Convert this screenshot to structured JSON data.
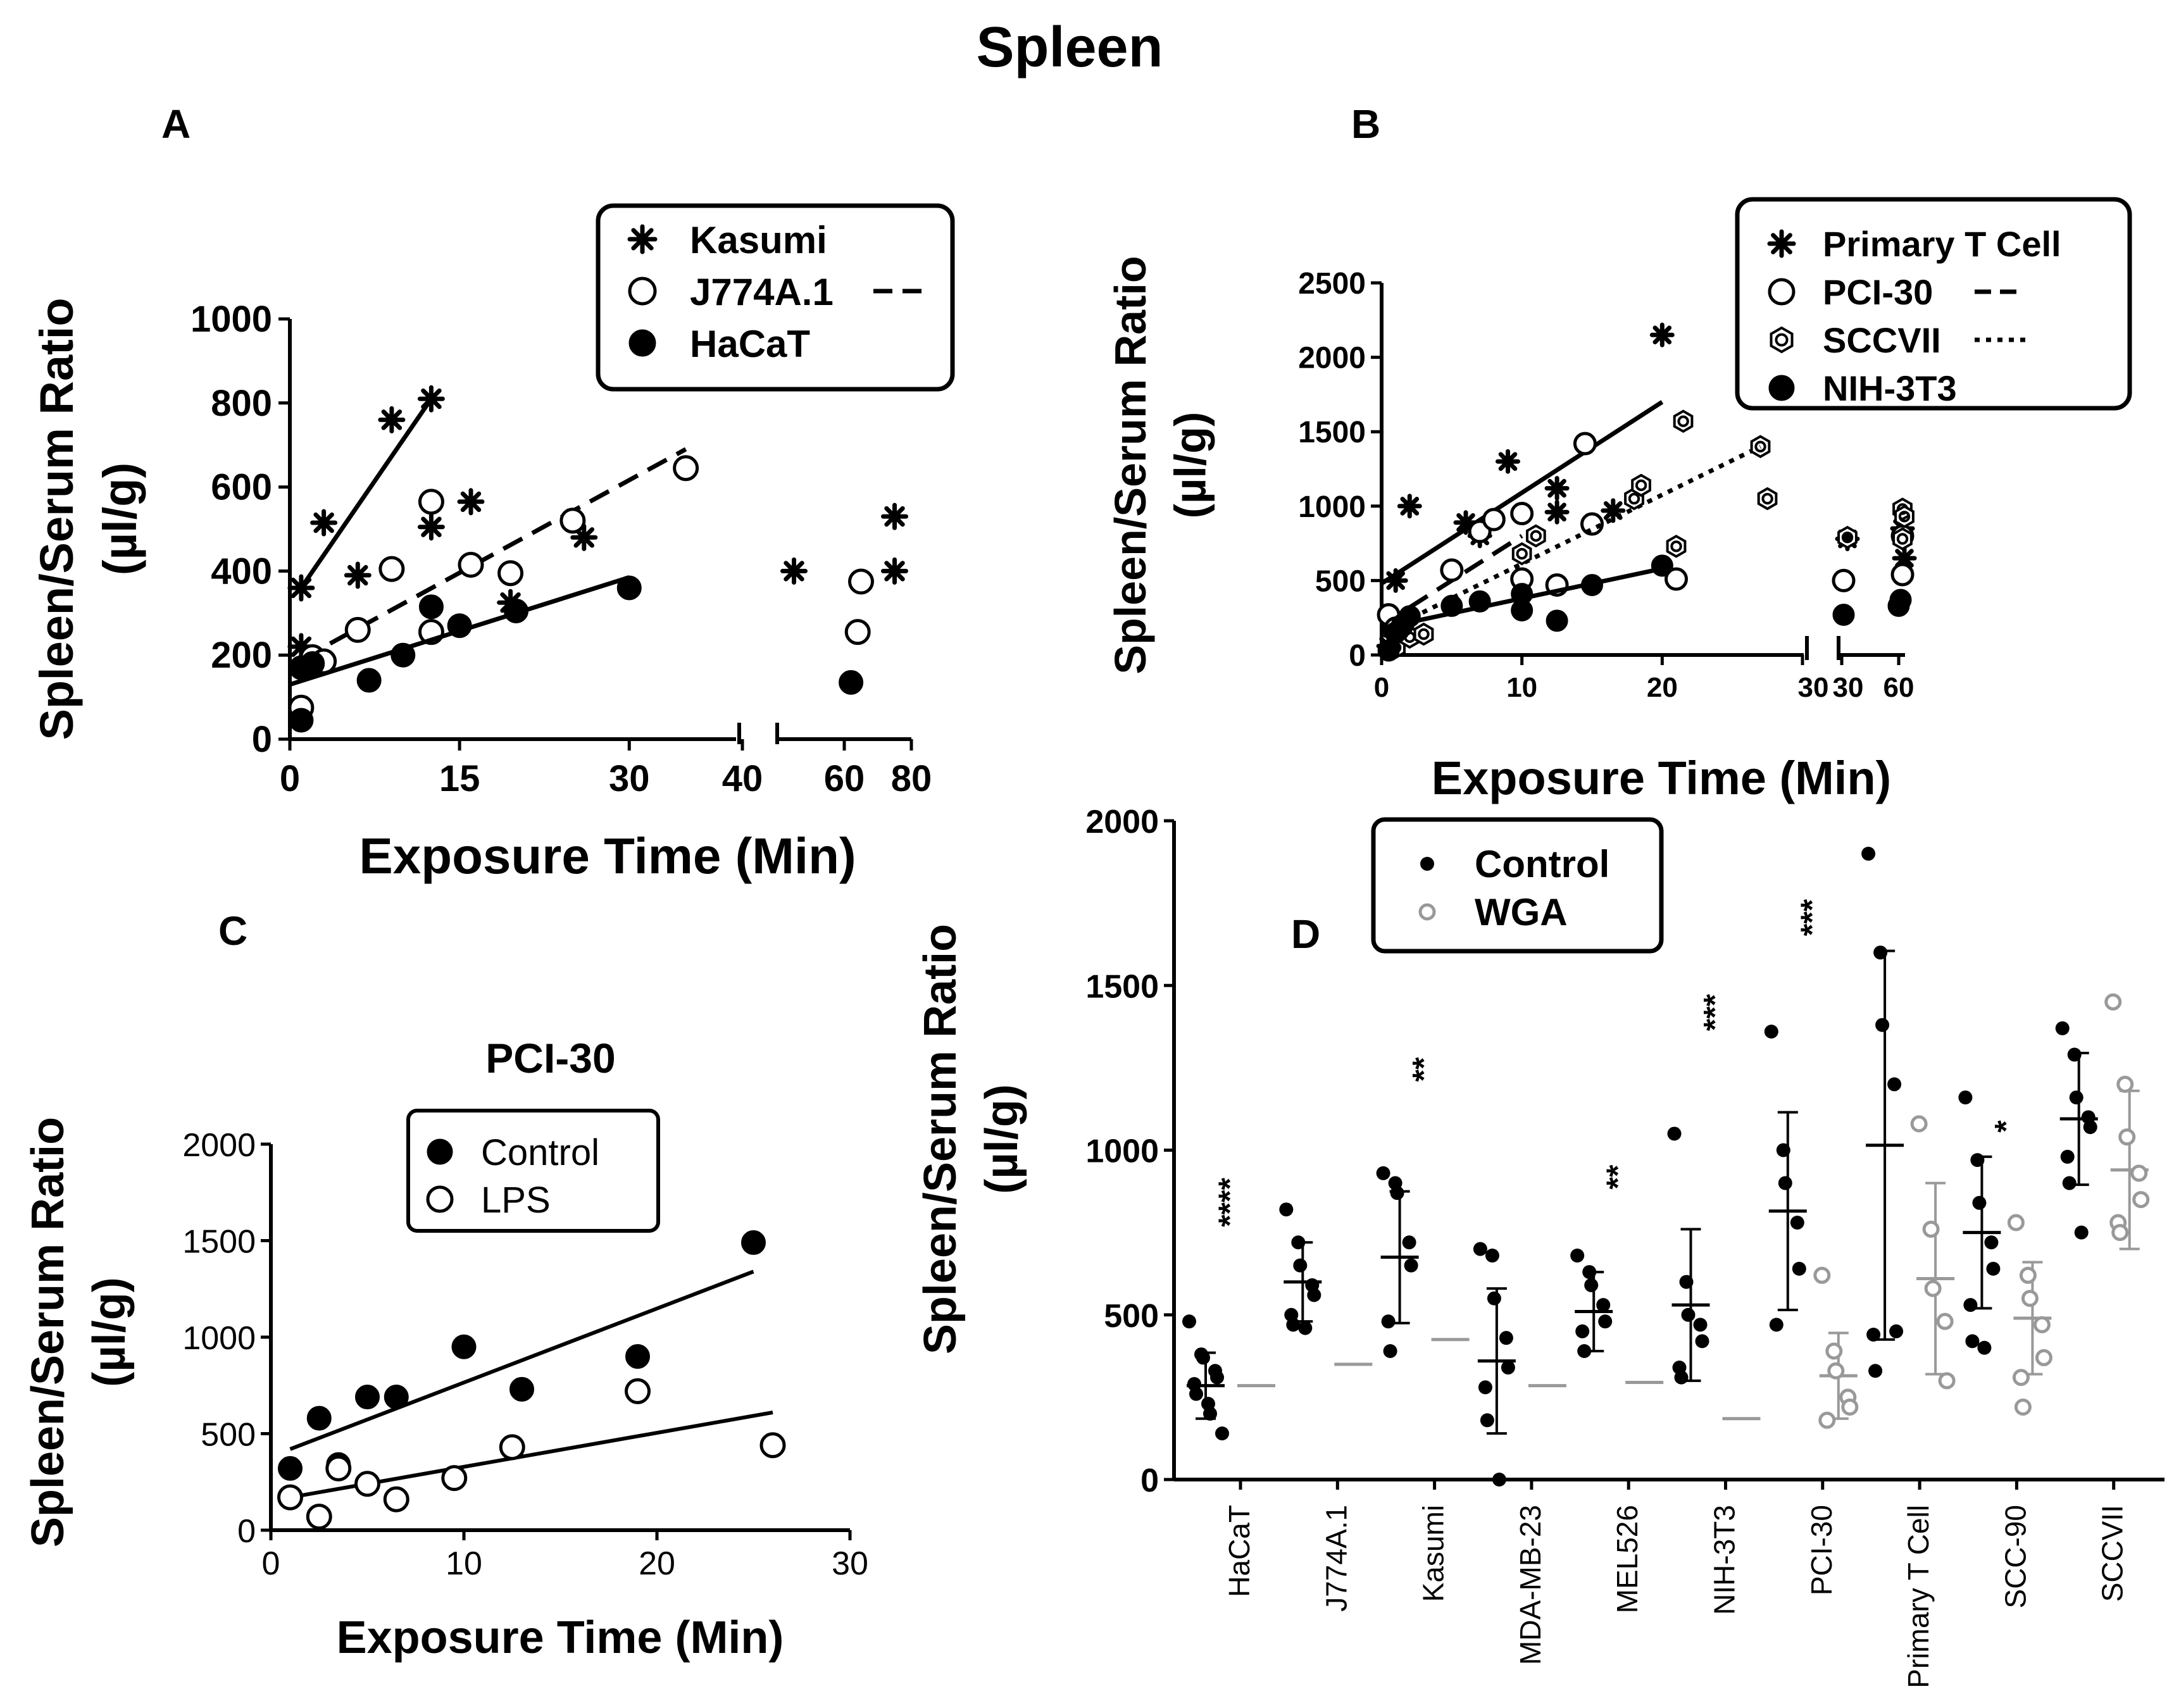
{
  "figure_title": "Spleen",
  "chart_data": [
    {
      "panel": "A",
      "type": "scatter",
      "xlabel": "Exposure Time (Min)",
      "ylabel": [
        "Spleen/Serum Ratio",
        "(µl/g)"
      ],
      "ylim": [
        0,
        1000
      ],
      "yticks": [
        "0",
        "200",
        "400",
        "600",
        "800",
        "1000"
      ],
      "xticks": [
        "0",
        "15",
        "30",
        "40",
        "60",
        "80"
      ],
      "x_axis_breaks": "broken axis: 0–40 then 40–80",
      "legend_position": "top-right",
      "series": [
        {
          "name": "Kasumi",
          "marker": "asterisk",
          "line": "solid",
          "points": [
            [
              1,
              360
            ],
            [
              1,
              220
            ],
            [
              3,
              515
            ],
            [
              6,
              390
            ],
            [
              9,
              760
            ],
            [
              12.5,
              810
            ],
            [
              12.5,
              505
            ],
            [
              16,
              565
            ],
            [
              19.5,
              325
            ],
            [
              26,
              480
            ],
            [
              45,
              400
            ],
            [
              75,
              530
            ],
            [
              75,
              400
            ]
          ],
          "fit": [
            [
              1,
              360
            ],
            [
              12.5,
              810
            ]
          ]
        },
        {
          "name": "J774A.1",
          "marker": "open-circle",
          "line": "dashed",
          "points": [
            [
              1,
              75
            ],
            [
              2,
              195
            ],
            [
              3,
              185
            ],
            [
              6,
              260
            ],
            [
              9,
              405
            ],
            [
              12.5,
              565
            ],
            [
              12.5,
              255
            ],
            [
              16,
              415
            ],
            [
              19.5,
              395
            ],
            [
              25,
              520
            ],
            [
              35,
              645
            ],
            [
              64,
              255
            ],
            [
              65,
              375
            ]
          ],
          "fit": [
            [
              1,
              190
            ],
            [
              35,
              690
            ]
          ]
        },
        {
          "name": "HaCaT",
          "marker": "filled-circle",
          "line": "solid",
          "points": [
            [
              1,
              45
            ],
            [
              1,
              170
            ],
            [
              2,
              180
            ],
            [
              7,
              140
            ],
            [
              10,
              200
            ],
            [
              12.5,
              315
            ],
            [
              15,
              270
            ],
            [
              20,
              305
            ],
            [
              30,
              360
            ],
            [
              62,
              135
            ]
          ],
          "fit": [
            [
              0,
              130
            ],
            [
              30,
              385
            ]
          ]
        }
      ]
    },
    {
      "panel": "B",
      "type": "scatter",
      "xlabel": "Exposure Time (Min)",
      "ylabel": [
        "Spleen/Serum Ratio",
        "(µl/g)"
      ],
      "ylim": [
        0,
        2500
      ],
      "yticks": [
        "0",
        "500",
        "1000",
        "1500",
        "2000",
        "2500"
      ],
      "xticks": [
        "0",
        "10",
        "20",
        "30",
        "30",
        "60"
      ],
      "x_axis_breaks": "broken axis: 0–30 then 30–60+",
      "legend_position": "top-right",
      "series": [
        {
          "name": "Primary T Cell",
          "marker": "asterisk",
          "line": "solid",
          "points": [
            [
              0.5,
              60
            ],
            [
              1,
              130
            ],
            [
              1,
              500
            ],
            [
              2,
              1000
            ],
            [
              6,
              890
            ],
            [
              7,
              800
            ],
            [
              9,
              1300
            ],
            [
              12.5,
              1120
            ],
            [
              12.5,
              960
            ],
            [
              16.5,
              970
            ],
            [
              20,
              2150
            ],
            [
              33,
              780
            ],
            [
              62,
              850
            ],
            [
              63,
              650
            ]
          ],
          "fit": [
            [
              0,
              480
            ],
            [
              20,
              1700
            ]
          ]
        },
        {
          "name": "PCI-30",
          "marker": "open-circle",
          "line": "dashed",
          "points": [
            [
              0.5,
              270
            ],
            [
              1,
              180
            ],
            [
              1.5,
              200
            ],
            [
              5,
              570
            ],
            [
              7,
              830
            ],
            [
              8,
              910
            ],
            [
              10,
              510
            ],
            [
              10,
              950
            ],
            [
              12.5,
              470
            ],
            [
              14.5,
              1420
            ],
            [
              15,
              880
            ],
            [
              21,
              510
            ],
            [
              31,
              500
            ],
            [
              62,
              540
            ],
            [
              62,
              800
            ]
          ],
          "fit": [
            [
              0,
              200
            ],
            [
              10,
              800
            ]
          ]
        },
        {
          "name": "SCCVII",
          "marker": "hexagon",
          "line": "dotted",
          "points": [
            [
              1,
              50
            ],
            [
              2,
              120
            ],
            [
              3,
              140
            ],
            [
              10,
              680
            ],
            [
              11,
              800
            ],
            [
              18,
              1050
            ],
            [
              18.5,
              1140
            ],
            [
              21,
              730
            ],
            [
              21.5,
              1570
            ],
            [
              27,
              1400
            ],
            [
              27.5,
              1050
            ],
            [
              33,
              790
            ],
            [
              62,
              980
            ],
            [
              62,
              780
            ],
            [
              63,
              930
            ]
          ],
          "fit": [
            [
              0,
              150
            ],
            [
              27,
              1400
            ]
          ]
        },
        {
          "name": "NIH-3T3",
          "marker": "filled-circle",
          "line": "solid",
          "points": [
            [
              0.5,
              30
            ],
            [
              1,
              150
            ],
            [
              1.5,
              200
            ],
            [
              2,
              260
            ],
            [
              5,
              330
            ],
            [
              7,
              360
            ],
            [
              10,
              300
            ],
            [
              10,
              410
            ],
            [
              12.5,
              230
            ],
            [
              15,
              470
            ],
            [
              20,
              600
            ],
            [
              31,
              270
            ],
            [
              60,
              330
            ],
            [
              61,
              370
            ]
          ],
          "fit": [
            [
              0,
              180
            ],
            [
              20,
              580
            ]
          ]
        }
      ]
    },
    {
      "panel": "C",
      "type": "scatter",
      "title": "PCI-30",
      "xlabel": "Exposure Time (Min)",
      "ylabel": [
        "Spleen/Serum Ratio",
        "(µl/g)"
      ],
      "xlim": [
        0,
        30
      ],
      "ylim": [
        0,
        2000
      ],
      "xticks": [
        "0",
        "10",
        "20",
        "30"
      ],
      "yticks": [
        "0",
        "500",
        "1000",
        "1500",
        "2000"
      ],
      "legend_position": "top",
      "series": [
        {
          "name": "Control",
          "marker": "filled-circle",
          "points": [
            [
              1,
              320
            ],
            [
              2.5,
              580
            ],
            [
              3.5,
              340
            ],
            [
              5,
              690
            ],
            [
              6.5,
              690
            ],
            [
              10,
              950
            ],
            [
              13,
              730
            ],
            [
              19,
              900
            ],
            [
              25,
              1490
            ]
          ],
          "fit": [
            [
              1,
              420
            ],
            [
              25,
              1340
            ]
          ]
        },
        {
          "name": "LPS",
          "marker": "open-circle",
          "points": [
            [
              1,
              170
            ],
            [
              2.5,
              70
            ],
            [
              3.5,
              320
            ],
            [
              5,
              240
            ],
            [
              6.5,
              160
            ],
            [
              9.5,
              270
            ],
            [
              12.5,
              430
            ],
            [
              19,
              720
            ],
            [
              26,
              440
            ]
          ],
          "fit": [
            [
              1,
              170
            ],
            [
              26,
              610
            ]
          ]
        }
      ]
    },
    {
      "panel": "D",
      "type": "scatter",
      "ylabel": [
        "Spleen/Serum Ratio",
        "(µl/g)"
      ],
      "ylim": [
        0,
        2000
      ],
      "yticks": [
        "0",
        "500",
        "1000",
        "1500",
        "2000"
      ],
      "categories": [
        "HaCaT",
        "J774A.1",
        "Kasumi",
        "MDA-MB-23",
        "MEL526",
        "NIH-3T3",
        "PCI-30",
        "Primary T Cell",
        "SCC-90",
        "SCCVII"
      ],
      "legend_position": "top-left",
      "series": [
        {
          "name": "Control",
          "color": "#000000",
          "mean": [
            285,
            600,
            675,
            360,
            510,
            530,
            815,
            1015,
            750,
            1095
          ],
          "sd": [
            100,
            120,
            200,
            220,
            120,
            230,
            300,
            590,
            230,
            200
          ],
          "points": [
            [
              480,
              380,
              370,
              330,
              310,
              290,
              260,
              230,
              200,
              140
            ],
            [
              820,
              720,
              650,
              590,
              560,
              500,
              470,
              460
            ],
            [
              930,
              900,
              870,
              720,
              650,
              480,
              390
            ],
            [
              700,
              680,
              550,
              430,
              340,
              280,
              180,
              0
            ],
            [
              680,
              630,
              590,
              530,
              480,
              450,
              390
            ],
            [
              1050,
              600,
              500,
              470,
              420,
              340,
              310
            ],
            [
              1360,
              1000,
              900,
              780,
              640,
              470
            ],
            [
              1900,
              1600,
              1380,
              1200,
              450,
              440,
              330
            ],
            [
              1160,
              970,
              840,
              720,
              640,
              530,
              420,
              400
            ],
            [
              1370,
              1290,
              1160,
              1100,
              1070,
              980,
              900,
              750
            ]
          ]
        },
        {
          "name": "WGA",
          "color": "#999999",
          "mean": [
            285,
            350,
            425,
            285,
            295,
            185,
            315,
            610,
            490,
            940
          ],
          "sd": [
            0,
            0,
            0,
            0,
            0,
            0,
            130,
            290,
            170,
            240
          ],
          "points": [
            [],
            [],
            [],
            [],
            [],
            [],
            [
              620,
              390,
              330,
              250,
              220,
              180
            ],
            [
              1080,
              760,
              580,
              480,
              300
            ],
            [
              780,
              620,
              550,
              470,
              370,
              310,
              220
            ],
            [
              1450,
              1200,
              1040,
              930,
              850,
              780,
              750
            ]
          ]
        }
      ],
      "significance": [
        "****",
        "",
        "**",
        "",
        "**",
        "***",
        "***",
        "",
        "*",
        ""
      ]
    }
  ]
}
